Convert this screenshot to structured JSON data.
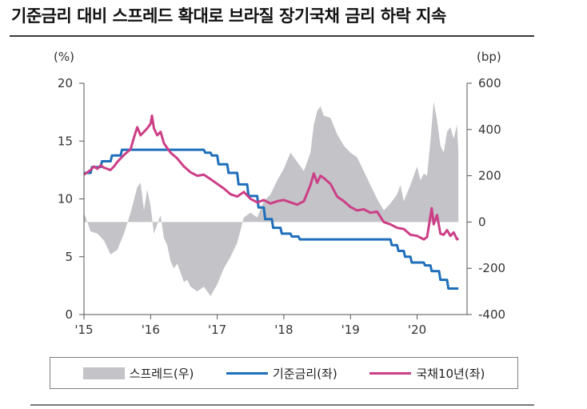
{
  "title": "기준금리 대비 스프레드 확대로 브라질 장기국채 금리 하락 지속",
  "colors": {
    "spread": "#c3c3c8",
    "policy": "#1f6fba",
    "yield": "#cc3f87",
    "axis": "#555555"
  },
  "chart_data": {
    "type": "line",
    "title": "기준금리 대비 스프레드 확대로 브라질 장기국채 금리 하락 지속",
    "left_axis": {
      "unit": "(%)",
      "range": [
        0,
        20
      ],
      "ticks": [
        "0",
        "5",
        "10",
        "15",
        "20"
      ]
    },
    "right_axis": {
      "unit": "(bp)",
      "range": [
        -400,
        600
      ],
      "ticks": [
        "-400",
        "-200",
        "0",
        "200",
        "400",
        "600"
      ]
    },
    "x_axis": {
      "range": [
        2015.0,
        2020.75
      ],
      "ticks": [
        {
          "x": 2015.0,
          "label": "'15"
        },
        {
          "x": 2016.0,
          "label": "'16"
        },
        {
          "x": 2017.0,
          "label": "'17"
        },
        {
          "x": 2018.0,
          "label": "'18"
        },
        {
          "x": 2019.0,
          "label": "'19"
        },
        {
          "x": 2020.0,
          "label": "'20"
        }
      ]
    },
    "legend_position": "bottom",
    "series": [
      {
        "name": "스프레드(우)",
        "kind": "area",
        "axis": "right",
        "points": [
          [
            2015.0,
            40
          ],
          [
            2015.1,
            -40
          ],
          [
            2015.2,
            -50
          ],
          [
            2015.3,
            -80
          ],
          [
            2015.4,
            -140
          ],
          [
            2015.5,
            -120
          ],
          [
            2015.6,
            -50
          ],
          [
            2015.7,
            40
          ],
          [
            2015.8,
            150
          ],
          [
            2015.85,
            170
          ],
          [
            2015.9,
            50
          ],
          [
            2015.95,
            140
          ],
          [
            2016.0,
            70
          ],
          [
            2016.05,
            -50
          ],
          [
            2016.1,
            -10
          ],
          [
            2016.15,
            30
          ],
          [
            2016.2,
            -70
          ],
          [
            2016.25,
            -100
          ],
          [
            2016.3,
            -170
          ],
          [
            2016.35,
            -200
          ],
          [
            2016.4,
            -180
          ],
          [
            2016.5,
            -260
          ],
          [
            2016.55,
            -250
          ],
          [
            2016.6,
            -280
          ],
          [
            2016.7,
            -300
          ],
          [
            2016.8,
            -280
          ],
          [
            2016.9,
            -320
          ],
          [
            2017.0,
            -270
          ],
          [
            2017.1,
            -200
          ],
          [
            2017.2,
            -150
          ],
          [
            2017.3,
            -90
          ],
          [
            2017.4,
            20
          ],
          [
            2017.5,
            40
          ],
          [
            2017.6,
            20
          ],
          [
            2017.7,
            90
          ],
          [
            2017.8,
            120
          ],
          [
            2017.9,
            180
          ],
          [
            2018.0,
            230
          ],
          [
            2018.1,
            300
          ],
          [
            2018.2,
            260
          ],
          [
            2018.3,
            220
          ],
          [
            2018.4,
            300
          ],
          [
            2018.45,
            420
          ],
          [
            2018.5,
            480
          ],
          [
            2018.55,
            500
          ],
          [
            2018.6,
            460
          ],
          [
            2018.7,
            450
          ],
          [
            2018.8,
            380
          ],
          [
            2018.9,
            330
          ],
          [
            2019.0,
            300
          ],
          [
            2019.1,
            280
          ],
          [
            2019.2,
            220
          ],
          [
            2019.3,
            160
          ],
          [
            2019.4,
            100
          ],
          [
            2019.5,
            50
          ],
          [
            2019.6,
            80
          ],
          [
            2019.7,
            120
          ],
          [
            2019.75,
            160
          ],
          [
            2019.8,
            90
          ],
          [
            2019.9,
            160
          ],
          [
            2020.0,
            240
          ],
          [
            2020.05,
            180
          ],
          [
            2020.1,
            210
          ],
          [
            2020.15,
            200
          ],
          [
            2020.2,
            350
          ],
          [
            2020.25,
            520
          ],
          [
            2020.3,
            440
          ],
          [
            2020.35,
            330
          ],
          [
            2020.4,
            300
          ],
          [
            2020.45,
            390
          ],
          [
            2020.5,
            410
          ],
          [
            2020.55,
            360
          ],
          [
            2020.6,
            420
          ],
          [
            2020.62,
            300
          ]
        ]
      },
      {
        "name": "기준금리(좌)",
        "kind": "line",
        "axis": "left",
        "points": [
          [
            2015.0,
            12.25
          ],
          [
            2015.1,
            12.25
          ],
          [
            2015.12,
            12.75
          ],
          [
            2015.25,
            12.75
          ],
          [
            2015.27,
            13.25
          ],
          [
            2015.4,
            13.25
          ],
          [
            2015.42,
            13.75
          ],
          [
            2015.55,
            13.75
          ],
          [
            2015.57,
            14.25
          ],
          [
            2016.8,
            14.25
          ],
          [
            2016.82,
            14.0
          ],
          [
            2016.9,
            14.0
          ],
          [
            2016.92,
            13.75
          ],
          [
            2017.0,
            13.75
          ],
          [
            2017.02,
            13.0
          ],
          [
            2017.15,
            13.0
          ],
          [
            2017.17,
            12.25
          ],
          [
            2017.3,
            12.25
          ],
          [
            2017.32,
            11.25
          ],
          [
            2017.45,
            11.25
          ],
          [
            2017.47,
            10.25
          ],
          [
            2017.6,
            10.25
          ],
          [
            2017.62,
            9.25
          ],
          [
            2017.7,
            9.25
          ],
          [
            2017.72,
            8.25
          ],
          [
            2017.82,
            8.25
          ],
          [
            2017.84,
            7.5
          ],
          [
            2017.95,
            7.5
          ],
          [
            2017.97,
            7.0
          ],
          [
            2018.1,
            7.0
          ],
          [
            2018.12,
            6.75
          ],
          [
            2018.22,
            6.75
          ],
          [
            2018.24,
            6.5
          ],
          [
            2019.6,
            6.5
          ],
          [
            2019.62,
            6.0
          ],
          [
            2019.7,
            6.0
          ],
          [
            2019.72,
            5.5
          ],
          [
            2019.8,
            5.5
          ],
          [
            2019.82,
            5.0
          ],
          [
            2019.9,
            5.0
          ],
          [
            2019.92,
            4.5
          ],
          [
            2020.1,
            4.5
          ],
          [
            2020.12,
            4.25
          ],
          [
            2020.2,
            4.25
          ],
          [
            2020.22,
            3.75
          ],
          [
            2020.33,
            3.75
          ],
          [
            2020.35,
            3.0
          ],
          [
            2020.45,
            3.0
          ],
          [
            2020.47,
            2.25
          ],
          [
            2020.62,
            2.25
          ]
        ]
      },
      {
        "name": "국채10년(좌)",
        "kind": "line",
        "axis": "left",
        "points": [
          [
            2015.0,
            12.1
          ],
          [
            2015.05,
            12.3
          ],
          [
            2015.1,
            12.5
          ],
          [
            2015.15,
            12.8
          ],
          [
            2015.2,
            12.6
          ],
          [
            2015.25,
            12.9
          ],
          [
            2015.3,
            12.7
          ],
          [
            2015.4,
            12.5
          ],
          [
            2015.45,
            12.8
          ],
          [
            2015.5,
            13.2
          ],
          [
            2015.6,
            13.8
          ],
          [
            2015.7,
            14.3
          ],
          [
            2015.75,
            15.3
          ],
          [
            2015.8,
            16.2
          ],
          [
            2015.85,
            15.5
          ],
          [
            2015.9,
            15.8
          ],
          [
            2015.95,
            16.1
          ],
          [
            2016.0,
            16.5
          ],
          [
            2016.02,
            17.2
          ],
          [
            2016.05,
            16.1
          ],
          [
            2016.1,
            15.5
          ],
          [
            2016.15,
            15.8
          ],
          [
            2016.2,
            14.8
          ],
          [
            2016.3,
            14.0
          ],
          [
            2016.4,
            13.5
          ],
          [
            2016.5,
            12.8
          ],
          [
            2016.6,
            12.3
          ],
          [
            2016.7,
            12.0
          ],
          [
            2016.8,
            12.1
          ],
          [
            2016.9,
            11.7
          ],
          [
            2017.0,
            11.3
          ],
          [
            2017.1,
            10.9
          ],
          [
            2017.2,
            10.4
          ],
          [
            2017.3,
            10.2
          ],
          [
            2017.4,
            10.6
          ],
          [
            2017.5,
            10.0
          ],
          [
            2017.6,
            9.7
          ],
          [
            2017.7,
            9.9
          ],
          [
            2017.8,
            9.6
          ],
          [
            2017.9,
            9.8
          ],
          [
            2018.0,
            9.9
          ],
          [
            2018.1,
            9.7
          ],
          [
            2018.2,
            9.5
          ],
          [
            2018.3,
            9.8
          ],
          [
            2018.4,
            11.2
          ],
          [
            2018.45,
            12.2
          ],
          [
            2018.5,
            11.4
          ],
          [
            2018.55,
            12.0
          ],
          [
            2018.6,
            11.8
          ],
          [
            2018.7,
            11.3
          ],
          [
            2018.8,
            10.2
          ],
          [
            2018.9,
            9.8
          ],
          [
            2019.0,
            9.3
          ],
          [
            2019.1,
            9.0
          ],
          [
            2019.2,
            9.1
          ],
          [
            2019.3,
            8.8
          ],
          [
            2019.4,
            8.9
          ],
          [
            2019.5,
            8.0
          ],
          [
            2019.6,
            7.8
          ],
          [
            2019.7,
            7.5
          ],
          [
            2019.8,
            7.4
          ],
          [
            2019.9,
            6.9
          ],
          [
            2020.0,
            6.8
          ],
          [
            2020.1,
            6.5
          ],
          [
            2020.15,
            6.7
          ],
          [
            2020.2,
            8.5
          ],
          [
            2020.22,
            9.2
          ],
          [
            2020.25,
            7.8
          ],
          [
            2020.3,
            8.6
          ],
          [
            2020.35,
            7.0
          ],
          [
            2020.4,
            6.9
          ],
          [
            2020.45,
            7.3
          ],
          [
            2020.5,
            6.8
          ],
          [
            2020.55,
            7.1
          ],
          [
            2020.6,
            6.5
          ],
          [
            2020.62,
            6.6
          ]
        ]
      }
    ]
  },
  "legend": [
    {
      "label": "스프레드(우)",
      "kind": "area",
      "color": "#c3c3c8"
    },
    {
      "label": "기준금리(좌)",
      "kind": "line",
      "color": "#1f6fba"
    },
    {
      "label": "국채10년(좌)",
      "kind": "line",
      "color": "#cc3f87"
    }
  ]
}
